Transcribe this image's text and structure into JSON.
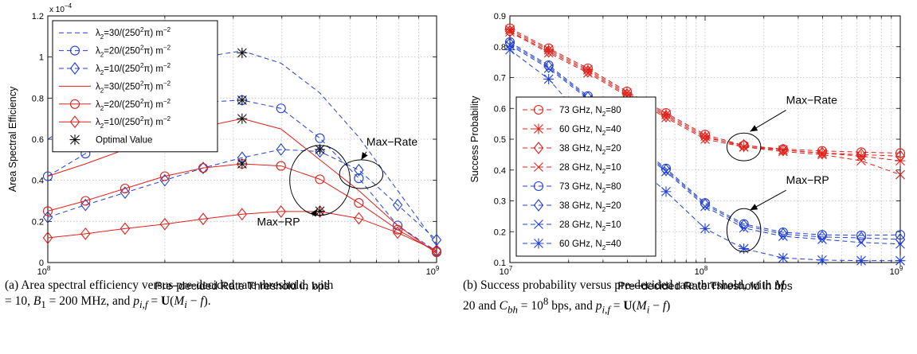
{
  "chart_data": [
    {
      "type": "line",
      "ylabel": "Area Spectral Efficiency",
      "xlabel": "Pre−decided Rate Threshold in bps",
      "x_scale": "log",
      "xlim": [
        100000000,
        1000000000
      ],
      "ylim": [
        0,
        0.00012
      ],
      "y_multiplier": "x 10",
      "y_multiplier_exp": "−4",
      "x_ticks": [
        {
          "v": 100000000,
          "base": "10",
          "exp": "8"
        },
        {
          "v": 1000000000,
          "base": "10",
          "exp": "9"
        }
      ],
      "y_ticks": [
        {
          "v": 0,
          "label": "0"
        },
        {
          "v": 2e-05,
          "label": "0.2"
        },
        {
          "v": 4e-05,
          "label": "0.4"
        },
        {
          "v": 6e-05,
          "label": "0.6"
        },
        {
          "v": 8e-05,
          "label": "0.8"
        },
        {
          "v": 0.0001,
          "label": "1"
        },
        {
          "v": 0.00012,
          "label": "1.2"
        }
      ],
      "grid": true,
      "legend_position": "top-left",
      "x": [
        100000000,
        125000000,
        158000000,
        200000000,
        251000000,
        316000000,
        398000000,
        501000000,
        631000000,
        794000000,
        1000000000
      ],
      "series": [
        {
          "name_main": "λ",
          "name_sub": "2",
          "name_rest": "=30/(250",
          "name_sup": "2",
          "name_end": "π) m",
          "name_sup2": "−2",
          "color": "#1f3fd6",
          "dash": "6,4",
          "marker": "none",
          "values": [
            6e-05,
            7.2e-05,
            8.3e-05,
            9.3e-05,
            0.0001,
            0.000103,
            9.7e-05,
            8.25e-05,
            6.1e-05,
            3.5e-05,
            9e-06
          ]
        },
        {
          "name_main": "λ",
          "name_sub": "2",
          "name_rest": "=20/(250",
          "name_sup": "2",
          "name_end": "π) m",
          "name_sup2": "−2",
          "color": "#1f3fd6",
          "dash": "6,4",
          "marker": "circle",
          "values": [
            4.2e-05,
            5.3e-05,
            6.3e-05,
            7.2e-05,
            7.8e-05,
            7.9e-05,
            7.5e-05,
            6.05e-05,
            4.1e-05,
            1.8e-05,
            5.5e-06
          ]
        },
        {
          "name_main": "λ",
          "name_sub": "2",
          "name_rest": "=10/(250",
          "name_sup": "2",
          "name_end": "π) m",
          "name_sup2": "−2",
          "color": "#1f3fd6",
          "dash": "6,4",
          "marker": "diamond",
          "values": [
            2.2e-05,
            2.8e-05,
            3.4e-05,
            4e-05,
            4.6e-05,
            5.1e-05,
            5.5e-05,
            5.4e-05,
            4.5e-05,
            2.8e-05,
            1.1e-05
          ]
        },
        {
          "name_main": "λ",
          "name_sub": "2",
          "name_rest": "=30/(250",
          "name_sup": "2",
          "name_end": "π) m",
          "name_sup2": "−2",
          "color": "#e0201a",
          "dash": "",
          "marker": "none",
          "values": [
            4.2e-05,
            4.8e-05,
            5.5e-05,
            6.1e-05,
            6.6e-05,
            7e-05,
            6.5e-05,
            5e-05,
            3.5e-05,
            1.8e-05,
            4.5e-06
          ]
        },
        {
          "name_main": "λ",
          "name_sub": "2",
          "name_rest": "=20/(250",
          "name_sup": "2",
          "name_end": "π) m",
          "name_sup2": "−2",
          "color": "#e0201a",
          "dash": "",
          "marker": "circle",
          "values": [
            2.5e-05,
            3e-05,
            3.6e-05,
            4.2e-05,
            4.6e-05,
            4.8e-05,
            4.7e-05,
            4.05e-05,
            2.9e-05,
            1.6e-05,
            5e-06
          ]
        },
        {
          "name_main": "λ",
          "name_sub": "2",
          "name_rest": "=10/(250",
          "name_sup": "2",
          "name_end": "π) m",
          "name_sup2": "−2",
          "color": "#e0201a",
          "dash": "",
          "marker": "diamond",
          "values": [
            1.2e-05,
            1.4e-05,
            1.65e-05,
            1.87e-05,
            2.12e-05,
            2.35e-05,
            2.48e-05,
            2.48e-05,
            2.15e-05,
            1.45e-05,
            5.8e-06
          ]
        }
      ],
      "optimal": {
        "name": "Optimal Value",
        "color": "#111111",
        "points": [
          {
            "x": 316000000,
            "y": 0.000102
          },
          {
            "x": 316000000,
            "y": 7.9e-05
          },
          {
            "x": 316000000,
            "y": 7e-05
          },
          {
            "x": 316000000,
            "y": 4.8e-05
          },
          {
            "x": 501000000,
            "y": 5.5e-05
          },
          {
            "x": 501000000,
            "y": 2.5e-05
          }
        ]
      },
      "annotations": [
        {
          "text": "Max−Rate",
          "cx": 640000000,
          "cy": 4.3e-05,
          "rx_frac": 0.018,
          "ry": 7e-06,
          "label_x": 660000000,
          "label_y": 5.7e-05,
          "arrow_to_x": 640000000,
          "arrow_to_y": 5e-05
        },
        {
          "text": "Max−RP",
          "cx": 501000000,
          "cy": 4e-05,
          "rx_frac": 0.025,
          "ry": 1.7e-05,
          "label_x": 345000000,
          "label_y": 1.8e-05,
          "arrow_to_x": 493000000,
          "arrow_to_y": 2.6e-05
        }
      ],
      "caption": {
        "line1_a": "(a) Area spectral efficiency versus pre-decided rate threshold, with",
        "line2_a": "= 10, ",
        "line2_b": "B",
        "line2_c": "1",
        "line2_d": " = 200 MHz, and ",
        "line2_e": "p",
        "line2_f": "i,f",
        "line2_g": " = ",
        "line2_h": "U",
        "line2_i": "(",
        "line2_j": "M",
        "line2_k": "i",
        "line2_l": " − ",
        "line2_m": "f",
        "line2_n": ")."
      }
    },
    {
      "type": "line",
      "ylabel": "Success Probability",
      "xlabel": "Pre−decided Rate Threshold in bps",
      "x_scale": "log",
      "xlim": [
        10000000,
        1000000000
      ],
      "ylim": [
        0.1,
        0.9
      ],
      "x_ticks": [
        {
          "v": 10000000,
          "base": "10",
          "exp": "7"
        },
        {
          "v": 100000000,
          "base": "10",
          "exp": "8"
        },
        {
          "v": 1000000000,
          "base": "10",
          "exp": "9"
        }
      ],
      "y_ticks": [
        {
          "v": 0.1,
          "label": "0.1"
        },
        {
          "v": 0.2,
          "label": "0.2"
        },
        {
          "v": 0.3,
          "label": "0.3"
        },
        {
          "v": 0.4,
          "label": "0.4"
        },
        {
          "v": 0.5,
          "label": "0.5"
        },
        {
          "v": 0.6,
          "label": "0.6"
        },
        {
          "v": 0.7,
          "label": "0.7"
        },
        {
          "v": 0.8,
          "label": "0.8"
        },
        {
          "v": 0.9,
          "label": "0.9"
        }
      ],
      "grid": true,
      "legend_position": "center-left",
      "x": [
        10000000,
        15800000,
        25100000,
        39800000,
        63100000,
        100000000,
        158000000,
        251000000,
        398000000,
        631000000,
        1000000000
      ],
      "series": [
        {
          "name_main": "73 GHz, N",
          "name_sub": "2",
          "name_rest": "=80",
          "color": "#e0201a",
          "marker": "circle",
          "values": [
            0.86,
            0.795,
            0.73,
            0.655,
            0.585,
            0.515,
            0.48,
            0.468,
            0.462,
            0.458,
            0.455
          ]
        },
        {
          "name_main": "60 GHz, N",
          "name_sub": "2",
          "name_rest": "=40",
          "color": "#e0201a",
          "marker": "star",
          "values": [
            0.855,
            0.79,
            0.725,
            0.65,
            0.58,
            0.51,
            0.475,
            0.465,
            0.455,
            0.445,
            0.43
          ]
        },
        {
          "name_main": "38 GHz, N",
          "name_sub": "2",
          "name_rest": "=20",
          "color": "#e0201a",
          "marker": "diamond",
          "values": [
            0.85,
            0.785,
            0.72,
            0.645,
            0.575,
            0.505,
            0.48,
            0.465,
            0.455,
            0.45,
            0.445
          ]
        },
        {
          "name_main": "28 GHz, N",
          "name_sub": "2",
          "name_rest": "=10",
          "color": "#e0201a",
          "marker": "x",
          "values": [
            0.848,
            0.78,
            0.715,
            0.64,
            0.57,
            0.5,
            0.475,
            0.46,
            0.45,
            0.43,
            0.385
          ]
        },
        {
          "name_main": "73 GHz, N",
          "name_sub": "2",
          "name_rest": "=80",
          "color": "#1f3fd6",
          "marker": "circle",
          "values": [
            0.815,
            0.74,
            0.64,
            0.505,
            0.405,
            0.293,
            0.225,
            0.198,
            0.19,
            0.188,
            0.19
          ]
        },
        {
          "name_main": "38 GHz, N",
          "name_sub": "2",
          "name_rest": "=20",
          "color": "#1f3fd6",
          "marker": "diamond",
          "values": [
            0.81,
            0.735,
            0.635,
            0.5,
            0.4,
            0.288,
            0.22,
            0.192,
            0.183,
            0.18,
            0.175
          ]
        },
        {
          "name_main": "28 GHz, N",
          "name_sub": "2",
          "name_rest": "=10",
          "color": "#1f3fd6",
          "marker": "x",
          "values": [
            0.805,
            0.73,
            0.63,
            0.495,
            0.395,
            0.282,
            0.212,
            0.185,
            0.175,
            0.165,
            0.16
          ]
        },
        {
          "name_main": "60 GHz, N",
          "name_sub": "2",
          "name_rest": "=40",
          "color": "#1f3fd6",
          "marker": "star",
          "values": [
            0.79,
            0.695,
            0.55,
            0.44,
            0.33,
            0.21,
            0.145,
            0.115,
            0.108,
            0.106,
            0.106
          ]
        }
      ],
      "annotations": [
        {
          "text": "Max−Rate",
          "cx": 158000000,
          "cy": 0.475,
          "rx_frac": 0.014,
          "ry": 0.045,
          "label_x": 260000000,
          "label_y": 0.615,
          "arrow_to_x": 170000000,
          "arrow_to_y": 0.525
        },
        {
          "text": "Max−RP",
          "cx": 158000000,
          "cy": 0.205,
          "rx_frac": 0.014,
          "ry": 0.07,
          "label_x": 260000000,
          "label_y": 0.355,
          "arrow_to_x": 170000000,
          "arrow_to_y": 0.27
        }
      ],
      "caption": {
        "line1_a": "(b) Success probability versus pre-decided rate threshold, with ",
        "line1_b": "M",
        "line2_a": "20 and ",
        "line2_b": "C",
        "line2_c": "bh",
        "line2_d": " = 10",
        "line2_e": "8",
        "line2_f": " bps, and ",
        "line2_g": "p",
        "line2_h": "i,f",
        "line2_i": " = ",
        "line2_j": "U",
        "line2_k": "(",
        "line2_l": "M",
        "line2_m": "i",
        "line2_n": " − ",
        "line2_o": "f",
        "line2_p": ")"
      }
    }
  ]
}
